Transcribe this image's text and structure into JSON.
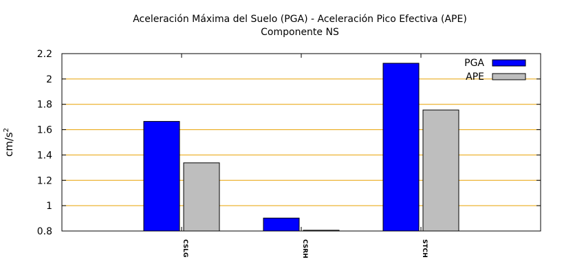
{
  "chart_data": {
    "type": "bar",
    "title": "Aceleración Máxima del Suelo (PGA) -  Aceleración Pico Efectiva (APE)",
    "subtitle": "Componente NS",
    "ylabel_base": "cm/s",
    "ylabel_sup": "2",
    "xlabel": "",
    "categories": [
      "CSLG",
      "CSRH",
      "STCH"
    ],
    "series": [
      {
        "name": "PGA",
        "color": "#0000ff",
        "values": [
          1.665,
          0.902,
          2.124
        ]
      },
      {
        "name": "APE",
        "color": "#bebebe",
        "values": [
          1.338,
          0.806,
          1.755
        ]
      }
    ],
    "ylim": [
      0.8,
      2.2
    ],
    "yticks": [
      "0.8",
      "1",
      "1.2",
      "1.4",
      "1.6",
      "1.8",
      "2",
      "2.2"
    ],
    "grid": true,
    "grid_color": "#e8a000",
    "legend_position": "top-right"
  }
}
